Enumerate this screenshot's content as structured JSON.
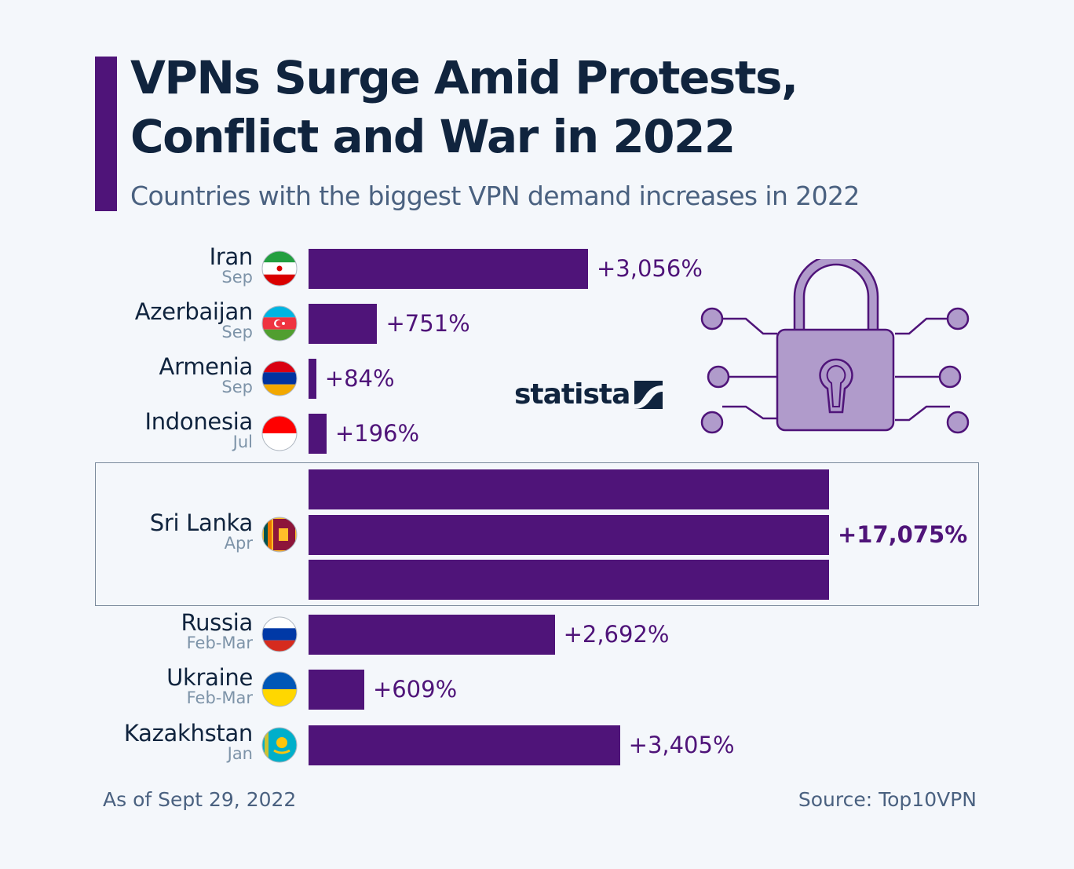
{
  "header": {
    "title_line1": "VPNs Surge Amid Protests,",
    "title_line2": "Conflict and War in 2022",
    "subtitle": "Countries with the biggest VPN demand increases in 2022"
  },
  "branding": {
    "logo_text": "statista"
  },
  "colors": {
    "bar": "#4f1479",
    "title": "#10243e",
    "subtitle": "#4a6180",
    "period": "#7d93a8",
    "background": "#f4f7fb",
    "lock_fill": "#b09bcb"
  },
  "chart_data": {
    "type": "bar",
    "orientation": "horizontal",
    "title": "VPNs Surge Amid Protests, Conflict and War in 2022",
    "subtitle": "Countries with the biggest VPN demand increases in 2022",
    "xlabel": "",
    "ylabel": "",
    "unit": "% increase in VPN demand",
    "categories": [
      "Iran",
      "Azerbaijan",
      "Armenia",
      "Indonesia",
      "Sri Lanka",
      "Russia",
      "Ukraine",
      "Kazakhstan"
    ],
    "periods": [
      "Sep",
      "Sep",
      "Sep",
      "Jul",
      "Apr",
      "Feb-Mar",
      "Feb-Mar",
      "Jan"
    ],
    "values": [
      3056,
      751,
      84,
      196,
      17075,
      2692,
      609,
      3405
    ],
    "labels": [
      "+3,056%",
      "+751%",
      "+84%",
      "+196%",
      "+17,075%",
      "+2,692%",
      "+609%",
      "+3,405%"
    ],
    "flags": [
      "flag-iran",
      "flag-azerbaijan",
      "flag-armenia",
      "flag-indonesia",
      "flag-sri-lanka",
      "flag-russia",
      "flag-ukraine",
      "flag-kazakhstan"
    ],
    "highlighted": "Sri Lanka",
    "truncated_bar": "Sri Lanka",
    "grid": false,
    "legend": "none"
  },
  "footer": {
    "note": "As of Sept 29, 2022",
    "source": "Source: Top10VPN"
  },
  "illustration": {
    "icon": "padlock-circuit-icon"
  }
}
